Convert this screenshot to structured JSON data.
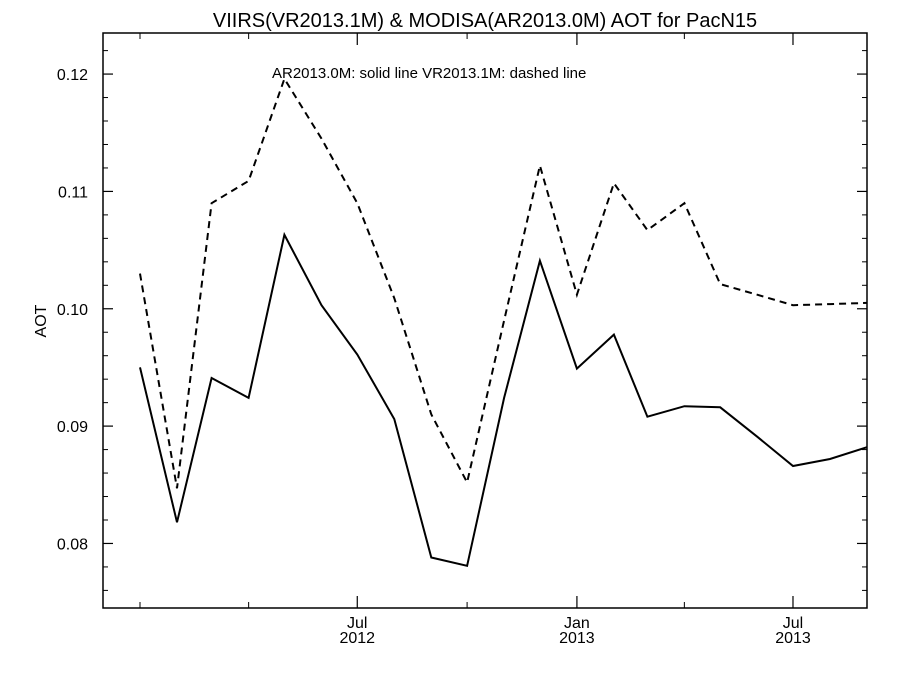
{
  "chart_data": {
    "type": "line",
    "title": "VIIRS(VR2013.1M) & MODISA(AR2013.0M)  AOT for PacN15",
    "ylabel": "AOT",
    "xlabel": "",
    "ylim": [
      0.0745,
      0.1235
    ],
    "xlim": [
      "2011-12-01",
      "2013-09-01"
    ],
    "grid": false,
    "annotation": "AR2013.0M: solid line   VR2013.1M: dashed line",
    "y_ticks": [
      "0.08",
      "0.09",
      "0.10",
      "0.11",
      "0.12"
    ],
    "x_tick_labels": [
      {
        "date": "2012-07-01",
        "month": "Jul",
        "year": "2012"
      },
      {
        "date": "2013-01-01",
        "month": "Jan",
        "year": "2013"
      },
      {
        "date": "2013-07-01",
        "month": "Jul",
        "year": "2013"
      }
    ],
    "x": [
      "2012-01-01",
      "2012-02-01",
      "2012-03-01",
      "2012-04-01",
      "2012-05-01",
      "2012-06-01",
      "2012-07-01",
      "2012-08-01",
      "2012-09-01",
      "2012-10-01",
      "2012-11-01",
      "2012-12-01",
      "2013-01-01",
      "2013-02-01",
      "2013-03-01",
      "2013-04-01",
      "2013-05-01",
      "2013-06-01",
      "2013-07-01",
      "2013-08-01",
      "2013-09-01"
    ],
    "series": [
      {
        "name": "AR2013.0M",
        "style": "solid",
        "color": "#000000",
        "values": [
          0.095,
          0.0818,
          0.0941,
          0.0924,
          0.1063,
          0.1003,
          0.0961,
          0.0906,
          0.0788,
          0.0781,
          0.0924,
          0.1041,
          0.0949,
          0.0978,
          0.0908,
          0.0917,
          0.0916,
          0.0891,
          0.0866,
          0.0872,
          0.0882
        ]
      },
      {
        "name": "VR2013.1M",
        "style": "dashed",
        "color": "#000000",
        "values": [
          0.103,
          0.0847,
          0.109,
          0.1109,
          0.1196,
          0.1145,
          0.109,
          0.1009,
          0.091,
          0.0852,
          0.099,
          0.1122,
          0.1012,
          0.1107,
          0.1067,
          0.109,
          0.1021,
          0.1012,
          0.1003,
          0.1004,
          0.1005
        ]
      }
    ]
  }
}
